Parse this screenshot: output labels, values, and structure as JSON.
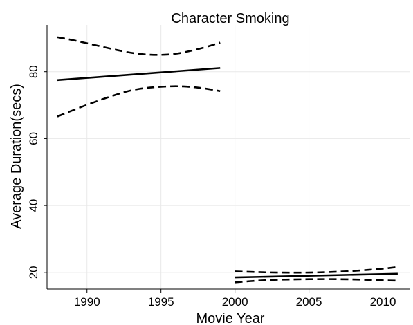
{
  "chart_data": {
    "type": "line",
    "title": "Character Smoking",
    "xlabel": "Movie Year",
    "ylabel": "Average Duration(secs)",
    "xlim": [
      1987.3,
      2011.8
    ],
    "ylim": [
      15,
      94
    ],
    "x_ticks": [
      "1990",
      "1995",
      "2000",
      "2005",
      "2010"
    ],
    "y_ticks": [
      "20",
      "40",
      "60",
      "80"
    ],
    "grid": true,
    "legend": "none",
    "series": [
      {
        "style": "solid",
        "x": [
          1988,
          1999
        ],
        "y": [
          77.5,
          81.1
        ]
      },
      {
        "style": "dashed",
        "x": [
          1988,
          1989,
          1990,
          1991,
          1992,
          1993,
          1994,
          1995,
          1996,
          1997,
          1998,
          1999
        ],
        "y": [
          90.3,
          89.5,
          88.5,
          87.5,
          86.5,
          85.6,
          85.1,
          85.0,
          85.3,
          86.2,
          87.3,
          88.7
        ]
      },
      {
        "style": "dashed",
        "x": [
          1988,
          1989,
          1990,
          1991,
          1992,
          1993,
          1994,
          1995,
          1996,
          1997,
          1998,
          1999
        ],
        "y": [
          66.6,
          68.4,
          70.1,
          71.7,
          73.2,
          74.5,
          75.2,
          75.5,
          75.7,
          75.5,
          75.0,
          74.2
        ]
      },
      {
        "style": "solid",
        "x": [
          2000,
          2011
        ],
        "y": [
          18.5,
          19.6
        ]
      },
      {
        "style": "dashed",
        "x": [
          2000,
          2002,
          2004,
          2006,
          2008,
          2010,
          2011
        ],
        "y": [
          20.3,
          20.0,
          19.9,
          20.0,
          20.4,
          21.1,
          21.6
        ]
      },
      {
        "style": "dashed",
        "x": [
          2000,
          2002,
          2004,
          2006,
          2008,
          2010,
          2011
        ],
        "y": [
          17.0,
          17.7,
          17.9,
          18.0,
          17.9,
          17.6,
          17.5
        ]
      }
    ]
  }
}
